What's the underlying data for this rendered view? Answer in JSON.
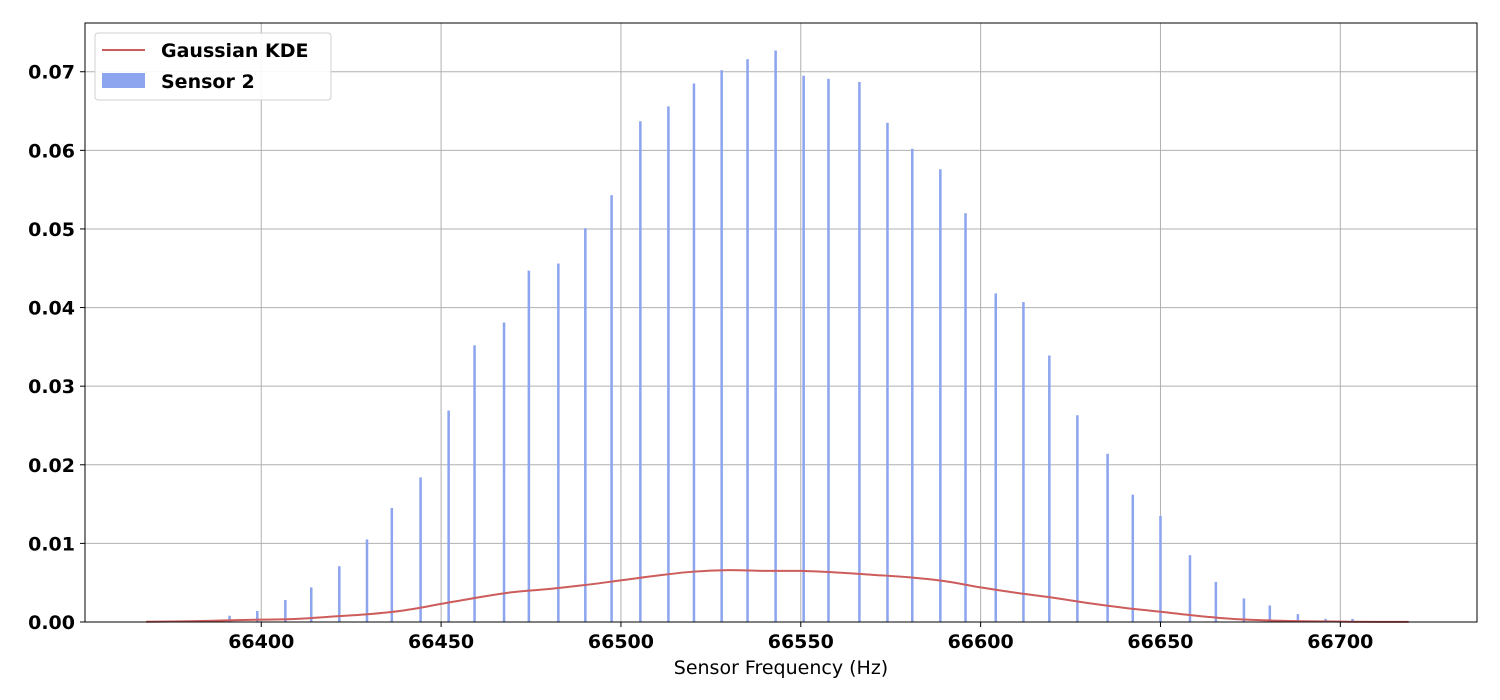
{
  "chart_data": {
    "type": "bar",
    "title": "",
    "xlabel": "Sensor Frequency (Hz)",
    "ylabel": "",
    "xlim": [
      66351,
      66738
    ],
    "ylim": [
      0,
      0.0762
    ],
    "x_ticks": [
      66400,
      66450,
      66500,
      66550,
      66600,
      66650,
      66700
    ],
    "y_ticks": [
      0.0,
      0.01,
      0.02,
      0.03,
      0.04,
      0.05,
      0.06,
      0.07
    ],
    "x_tick_labels": [
      "66400",
      "66450",
      "66500",
      "66550",
      "66600",
      "66650",
      "66700"
    ],
    "y_tick_labels": [
      "0.00",
      "0.01",
      "0.02",
      "0.03",
      "0.04",
      "0.05",
      "0.06",
      "0.07"
    ],
    "grid": true,
    "legend_position": "top-left",
    "series": [
      {
        "name": "Sensor 2",
        "type": "bar",
        "color": "#8da4ee",
        "bar_width": 0.7,
        "x": [
          66383.6,
          66391.2,
          66398.9,
          66406.7,
          66413.9,
          66421.7,
          66429.4,
          66436.3,
          66444.3,
          66452.1,
          66459.3,
          66467.5,
          66474.4,
          66482.6,
          66490.1,
          66497.4,
          66505.4,
          66513.2,
          66520.3,
          66528.0,
          66535.2,
          66543.0,
          66550.8,
          66557.7,
          66566.3,
          66574.1,
          66581.0,
          66588.8,
          66595.8,
          66604.2,
          66611.9,
          66619.1,
          66626.9,
          66635.3,
          66642.3,
          66650.0,
          66658.2,
          66665.4,
          66673.2,
          66680.4,
          66688.2,
          66695.9,
          66703.4
        ],
        "values": [
          0.0002,
          0.0008,
          0.0014,
          0.0028,
          0.0044,
          0.0071,
          0.0105,
          0.0145,
          0.0184,
          0.0269,
          0.0352,
          0.0381,
          0.0447,
          0.0456,
          0.0501,
          0.0543,
          0.0637,
          0.0656,
          0.0685,
          0.0702,
          0.0716,
          0.0727,
          0.0695,
          0.0691,
          0.0687,
          0.0635,
          0.0602,
          0.0576,
          0.052,
          0.0418,
          0.0407,
          0.0339,
          0.0263,
          0.0214,
          0.0162,
          0.0135,
          0.0085,
          0.0051,
          0.003,
          0.0021,
          0.001,
          0.0004,
          0.0004
        ]
      },
      {
        "name": "Gaussian KDE",
        "type": "line",
        "color": "#cd5c5c",
        "x": [
          66368,
          66380,
          66390,
          66400,
          66410,
          66420,
          66430,
          66440,
          66450,
          66460,
          66470,
          66480,
          66490,
          66500,
          66510,
          66520,
          66530,
          66540,
          66550,
          66560,
          66570,
          66580,
          66590,
          66600,
          66610,
          66620,
          66630,
          66640,
          66650,
          66660,
          66670,
          66680,
          66690,
          66700,
          66710,
          66719
        ],
        "values": [
          3e-05,
          0.0001,
          0.0002,
          0.0003,
          0.0004,
          0.0007,
          0.001,
          0.0015,
          0.0023,
          0.0031,
          0.0038,
          0.0042,
          0.0047,
          0.0053,
          0.0059,
          0.0064,
          0.0066,
          0.0065,
          0.0065,
          0.0063,
          0.006,
          0.0057,
          0.0052,
          0.0044,
          0.0037,
          0.0031,
          0.0024,
          0.0018,
          0.0013,
          0.0008,
          0.0004,
          0.0002,
          0.0001,
          5e-05,
          2e-05,
          1e-05
        ]
      }
    ]
  }
}
